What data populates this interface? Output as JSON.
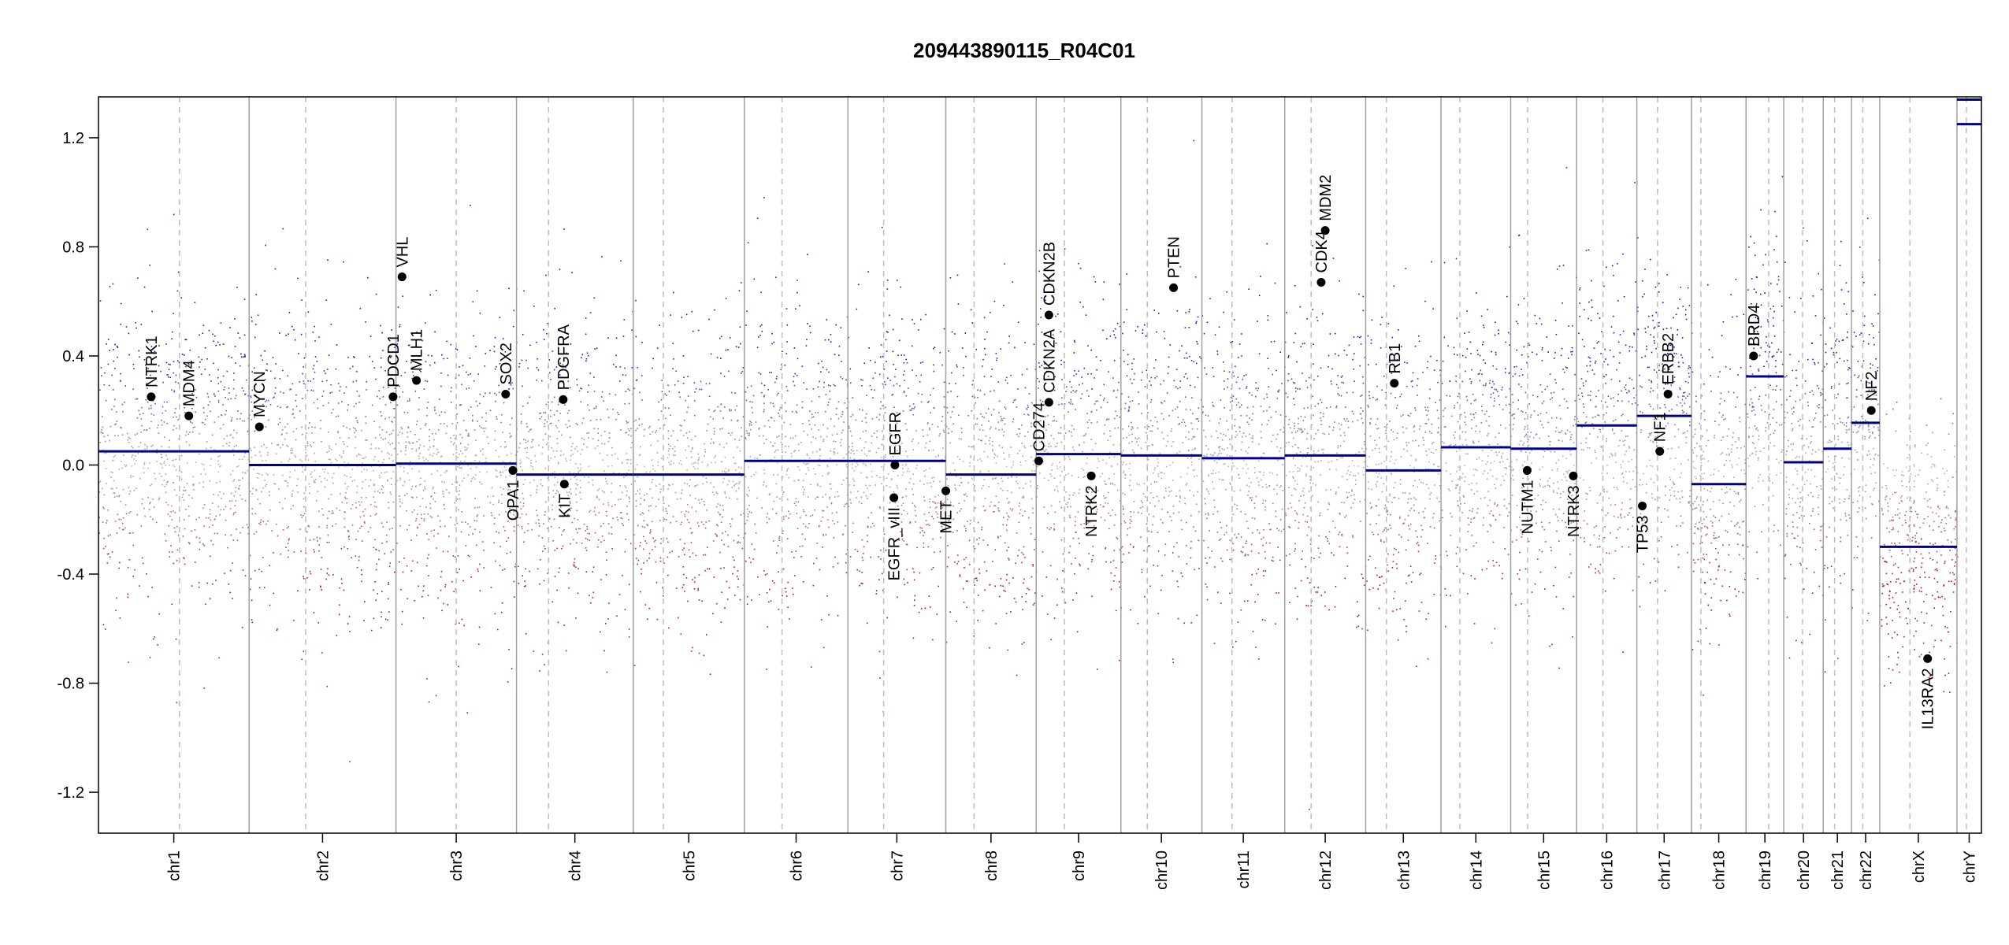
{
  "chart_data": {
    "type": "scatter",
    "title": "209443890115_R04C01",
    "xlabel": "",
    "ylabel": "",
    "ylim": [
      -1.35,
      1.35
    ],
    "yticks": [
      -1.2,
      -0.8,
      -0.4,
      0.0,
      0.4,
      0.8,
      1.2
    ],
    "ytick_labels": [
      "-1.2",
      "-0.8",
      "-0.4",
      "0.0",
      "0.4",
      "0.8",
      "1.2"
    ],
    "grid": false,
    "chromosomes": [
      {
        "name": "chr1",
        "start": 0.0,
        "end": 0.08,
        "centromere": 0.043
      },
      {
        "name": "chr2",
        "start": 0.08,
        "end": 0.158,
        "centromere": 0.11
      },
      {
        "name": "chr3",
        "start": 0.158,
        "end": 0.222,
        "centromere": 0.19
      },
      {
        "name": "chr4",
        "start": 0.222,
        "end": 0.284,
        "centromere": 0.239
      },
      {
        "name": "chr5",
        "start": 0.284,
        "end": 0.343,
        "centromere": 0.3
      },
      {
        "name": "chr6",
        "start": 0.343,
        "end": 0.398,
        "centromere": 0.363
      },
      {
        "name": "chr7",
        "start": 0.398,
        "end": 0.45,
        "centromere": 0.417
      },
      {
        "name": "chr8",
        "start": 0.45,
        "end": 0.498,
        "centromere": 0.465
      },
      {
        "name": "chr9",
        "start": 0.498,
        "end": 0.543,
        "centromere": 0.513
      },
      {
        "name": "chr10",
        "start": 0.543,
        "end": 0.586,
        "centromere": 0.557
      },
      {
        "name": "chr11",
        "start": 0.586,
        "end": 0.63,
        "centromere": 0.602
      },
      {
        "name": "chr12",
        "start": 0.63,
        "end": 0.673,
        "centromere": 0.644
      },
      {
        "name": "chr13",
        "start": 0.673,
        "end": 0.713,
        "centromere": 0.684
      },
      {
        "name": "chr14",
        "start": 0.713,
        "end": 0.75,
        "centromere": 0.723
      },
      {
        "name": "chr15",
        "start": 0.75,
        "end": 0.785,
        "centromere": 0.759
      },
      {
        "name": "chr16",
        "start": 0.785,
        "end": 0.817,
        "centromere": 0.799
      },
      {
        "name": "chr17",
        "start": 0.817,
        "end": 0.846,
        "centromere": 0.828
      },
      {
        "name": "chr18",
        "start": 0.846,
        "end": 0.875,
        "centromere": 0.851
      },
      {
        "name": "chr19",
        "start": 0.875,
        "end": 0.895,
        "centromere": 0.887
      },
      {
        "name": "chr20",
        "start": 0.895,
        "end": 0.916,
        "centromere": 0.905
      },
      {
        "name": "chr21",
        "start": 0.916,
        "end": 0.931,
        "centromere": 0.922
      },
      {
        "name": "chr22",
        "start": 0.931,
        "end": 0.946,
        "centromere": 0.937
      },
      {
        "name": "chrX",
        "start": 0.946,
        "end": 0.987,
        "centromere": 0.962
      },
      {
        "name": "chrY",
        "start": 0.987,
        "end": 1.0,
        "centromere": 0.992
      }
    ],
    "segments": [
      {
        "chr": "chr1",
        "y": 0.05
      },
      {
        "chr": "chr2",
        "y": 0.0
      },
      {
        "chr": "chr3",
        "y": 0.005
      },
      {
        "chr": "chr4",
        "y": -0.035
      },
      {
        "chr": "chr5",
        "y": -0.035
      },
      {
        "chr": "chr6",
        "y": 0.015
      },
      {
        "chr": "chr7",
        "y": 0.015
      },
      {
        "chr": "chr8",
        "y": -0.035
      },
      {
        "chr": "chr9",
        "y": 0.04
      },
      {
        "chr": "chr10",
        "y": 0.035
      },
      {
        "chr": "chr11",
        "y": 0.025
      },
      {
        "chr": "chr12",
        "y": 0.035
      },
      {
        "chr": "chr13",
        "y": -0.02
      },
      {
        "chr": "chr14",
        "y": 0.065
      },
      {
        "chr": "chr15",
        "y": 0.06
      },
      {
        "chr": "chr16",
        "y": 0.145
      },
      {
        "chr": "chr17",
        "y": 0.18
      },
      {
        "chr": "chr18",
        "y": -0.07
      },
      {
        "chr": "chr19",
        "y": 0.325
      },
      {
        "chr": "chr20",
        "y": 0.01
      },
      {
        "chr": "chr21",
        "y": 0.06
      },
      {
        "chr": "chr22",
        "y": 0.155
      },
      {
        "chr": "chrX",
        "y": -0.3
      },
      {
        "chr": "chrY",
        "y": 1.34
      },
      {
        "chr": "chrY",
        "y": 1.25
      }
    ],
    "genes": [
      {
        "name": "NTRK1",
        "chr": "chr1",
        "pos": 0.35,
        "y": 0.25,
        "label_dir": "up"
      },
      {
        "name": "MDM4",
        "chr": "chr1",
        "pos": 0.6,
        "y": 0.18,
        "label_dir": "up"
      },
      {
        "name": "MYCN",
        "chr": "chr2",
        "pos": 0.07,
        "y": 0.14,
        "label_dir": "up"
      },
      {
        "name": "PDCD1",
        "chr": "chr2",
        "pos": 0.98,
        "y": 0.25,
        "label_dir": "up"
      },
      {
        "name": "VHL",
        "chr": "chr3",
        "pos": 0.05,
        "y": 0.69,
        "label_dir": "up"
      },
      {
        "name": "MLH1",
        "chr": "chr3",
        "pos": 0.17,
        "y": 0.31,
        "label_dir": "up"
      },
      {
        "name": "SOX2",
        "chr": "chr3",
        "pos": 0.91,
        "y": 0.26,
        "label_dir": "up"
      },
      {
        "name": "OPA1",
        "chr": "chr3",
        "pos": 0.97,
        "y": -0.02,
        "label_dir": "down"
      },
      {
        "name": "PDGFRA",
        "chr": "chr4",
        "pos": 0.4,
        "y": 0.24,
        "label_dir": "up"
      },
      {
        "name": "KIT",
        "chr": "chr4",
        "pos": 0.41,
        "y": -0.07,
        "label_dir": "down"
      },
      {
        "name": "EGFR",
        "chr": "chr7",
        "pos": 0.48,
        "y": 0.0,
        "label_dir": "up"
      },
      {
        "name": "EGFR_vIII",
        "chr": "chr7",
        "pos": 0.47,
        "y": -0.12,
        "label_dir": "down"
      },
      {
        "name": "MET",
        "chr": "chr7",
        "pos": 1.0,
        "y": -0.095,
        "label_dir": "down"
      },
      {
        "name": "CD274",
        "chr": "chr9",
        "pos": 0.03,
        "y": 0.015,
        "label_dir": "up"
      },
      {
        "name": "CDKN2A",
        "chr": "chr9",
        "pos": 0.15,
        "y": 0.23,
        "label_dir": "up"
      },
      {
        "name": "CDKN2B",
        "chr": "chr9",
        "pos": 0.15,
        "y": 0.55,
        "label_dir": "up"
      },
      {
        "name": "NTRK2",
        "chr": "chr9",
        "pos": 0.65,
        "y": -0.04,
        "label_dir": "down"
      },
      {
        "name": "PTEN",
        "chr": "chr10",
        "pos": 0.65,
        "y": 0.65,
        "label_dir": "up"
      },
      {
        "name": "CDK4",
        "chr": "chr12",
        "pos": 0.45,
        "y": 0.67,
        "label_dir": "up"
      },
      {
        "name": "MDM2",
        "chr": "chr12",
        "pos": 0.5,
        "y": 0.86,
        "label_dir": "up"
      },
      {
        "name": "RB1",
        "chr": "chr13",
        "pos": 0.38,
        "y": 0.3,
        "label_dir": "up"
      },
      {
        "name": "NUTM1",
        "chr": "chr15",
        "pos": 0.25,
        "y": -0.02,
        "label_dir": "down"
      },
      {
        "name": "NTRK3",
        "chr": "chr15",
        "pos": 0.95,
        "y": -0.04,
        "label_dir": "down"
      },
      {
        "name": "TP53",
        "chr": "chr17",
        "pos": 0.1,
        "y": -0.15,
        "label_dir": "down"
      },
      {
        "name": "NF1",
        "chr": "chr17",
        "pos": 0.42,
        "y": 0.05,
        "label_dir": "up"
      },
      {
        "name": "ERBB2",
        "chr": "chr17",
        "pos": 0.57,
        "y": 0.26,
        "label_dir": "up"
      },
      {
        "name": "BRD4",
        "chr": "chr19",
        "pos": 0.2,
        "y": 0.4,
        "label_dir": "up"
      },
      {
        "name": "NF2",
        "chr": "chr22",
        "pos": 0.7,
        "y": 0.2,
        "label_dir": "up"
      },
      {
        "name": "IL13RA2",
        "chr": "chrX",
        "pos": 0.62,
        "y": -0.71,
        "label_dir": "down"
      }
    ],
    "colors": {
      "gain": "#1a1ab0",
      "loss": "#b01818",
      "neutral": "#b4b4b4",
      "segment": "#00008b",
      "chr_divider": "#a0a0a0",
      "centromere": "#bdbdbd",
      "gene_point": "#000000"
    }
  }
}
